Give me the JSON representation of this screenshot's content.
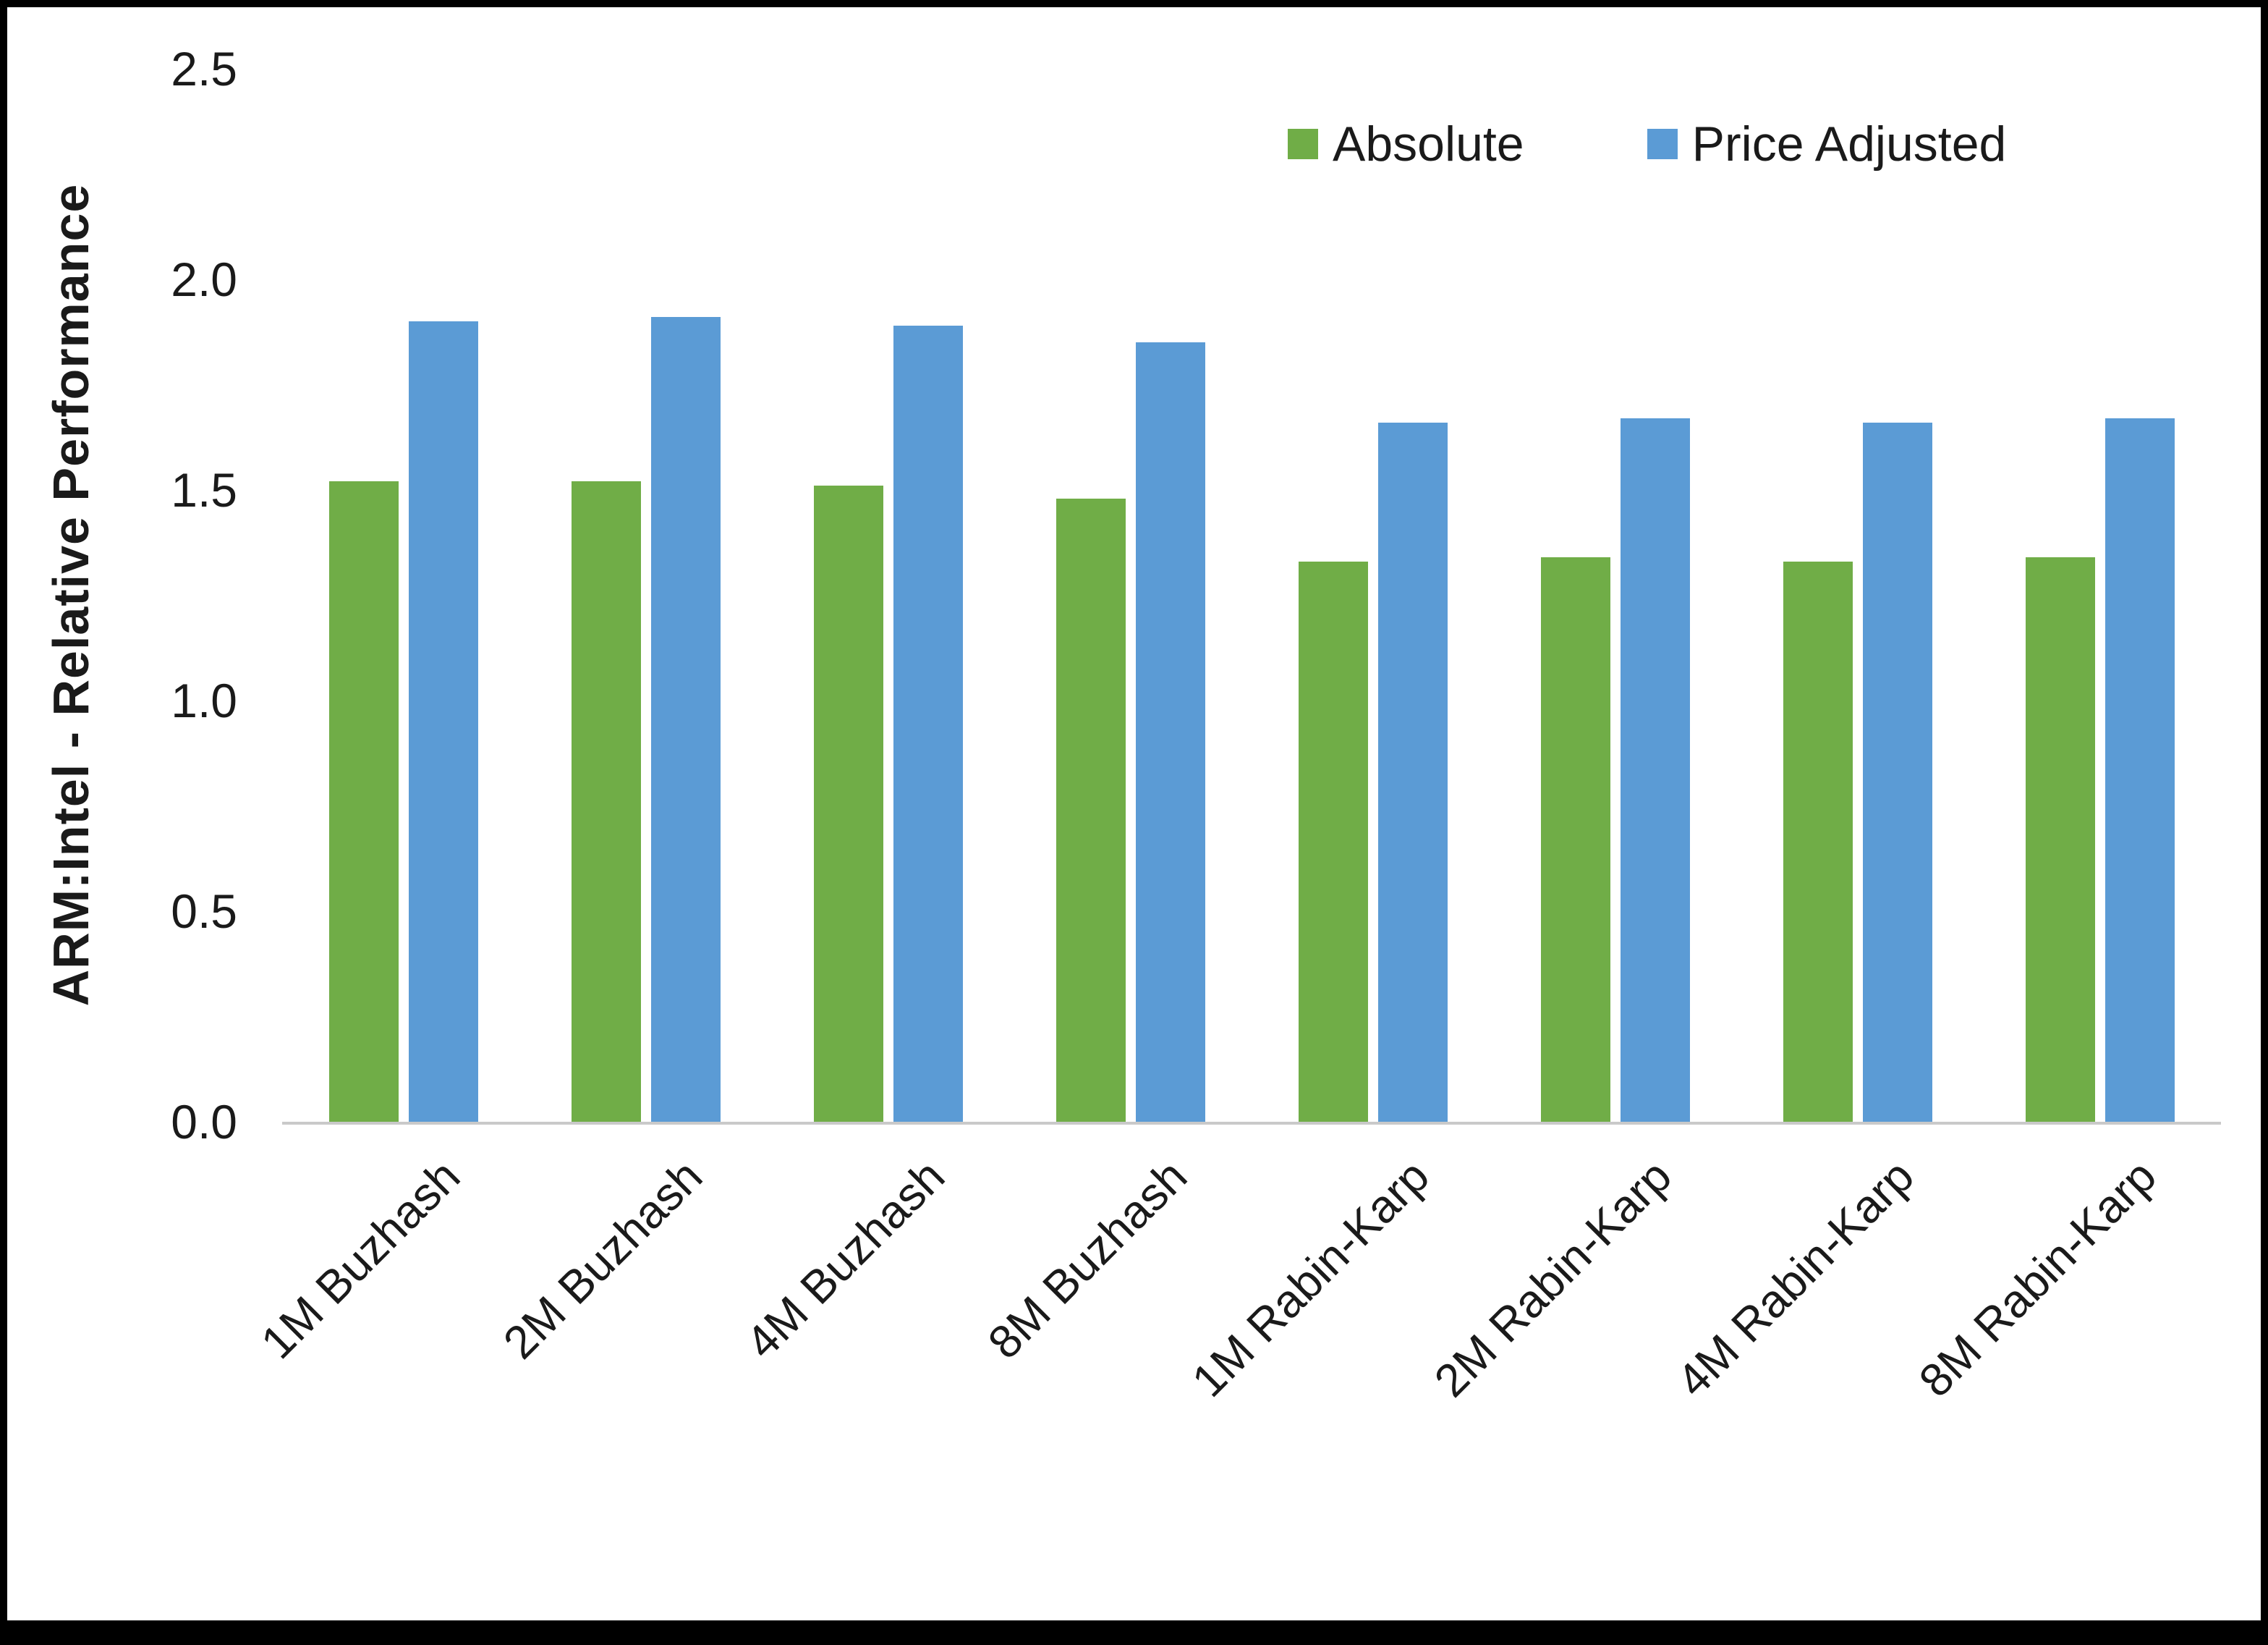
{
  "chart_data": {
    "type": "bar",
    "title": "",
    "categories": [
      "1M Buzhash",
      "2M Buzhash",
      "4M Buzhash",
      "8M Buzhash",
      "1M Rabin-Karp",
      "2M Rabin-Karp",
      "4M Rabin-Karp",
      "8M Rabin-Karp"
    ],
    "series": [
      {
        "name": "Absolute",
        "color": "#70AD47",
        "values": [
          1.52,
          1.52,
          1.51,
          1.48,
          1.33,
          1.34,
          1.33,
          1.34
        ]
      },
      {
        "name": "Price Adjusted",
        "color": "#5B9BD5",
        "values": [
          1.9,
          1.91,
          1.89,
          1.85,
          1.66,
          1.67,
          1.66,
          1.67
        ]
      }
    ],
    "xlabel": "",
    "ylabel": "ARM:Intel - Relative Performance",
    "ylim": [
      0,
      2.5
    ],
    "yticks": [
      0.0,
      0.5,
      1.0,
      1.5,
      2.0,
      2.5
    ],
    "ytick_labels": [
      "0.0",
      "0.5",
      "1.0",
      "1.5",
      "2.0",
      "2.5"
    ],
    "grid": false,
    "legend_position": "top",
    "axis_line_color": "#c9c9c9"
  }
}
